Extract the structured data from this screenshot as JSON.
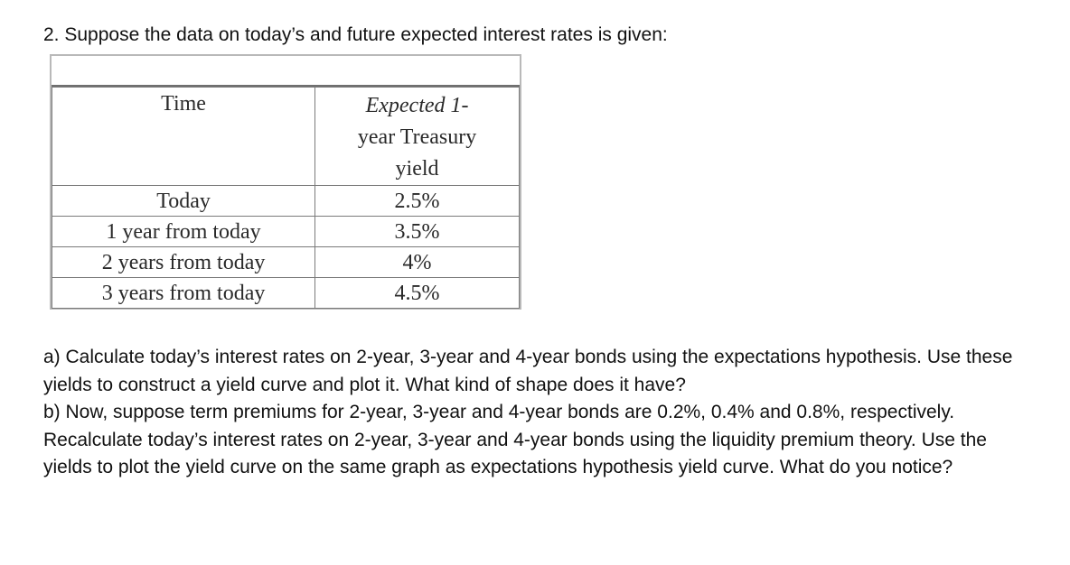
{
  "question": {
    "title": "2. Suppose the data on today’s and future expected interest rates is given:"
  },
  "table": {
    "headers": {
      "time": "Time",
      "yield_line1": "Expected 1-",
      "yield_line2": "year Treasury",
      "yield_line3": "yield"
    },
    "rows": [
      {
        "time": "Today",
        "yield": "2.5%"
      },
      {
        "time": "1 year from today",
        "yield": "3.5%"
      },
      {
        "time": "2 years from today",
        "yield": "4%"
      },
      {
        "time": "3 years from today",
        "yield": "4.5%"
      }
    ]
  },
  "parts": {
    "a": "a) Calculate today’s interest rates on 2-year, 3-year and 4-year bonds using the expectations hypothesis. Use these yields to construct a yield curve and plot it. What kind of shape does it have?",
    "b": "b) Now, suppose term premiums for 2-year, 3-year and 4-year bonds are 0.2%, 0.4% and 0.8%, respectively. Recalculate today’s interest rates on 2-year, 3-year and 4-year bonds using the liquidity premium theory. Use the yields to plot the yield curve on the same graph as expectations hypothesis yield curve. What do you notice?"
  }
}
